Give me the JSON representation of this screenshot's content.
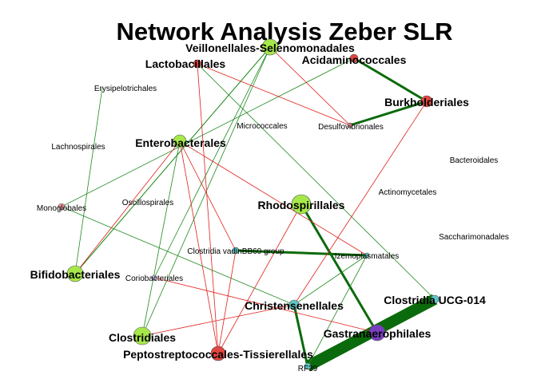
{
  "title": "Network Analysis Zeber SLR",
  "colors": {
    "positive_edge": "#1f8a1f",
    "strong_positive_edge": "#0b6a0b",
    "negative_edge": "#e0201a",
    "green_node": "#a6e84a",
    "red_node": "#e0463f",
    "teal_node": "#5ec8c8",
    "purple_node": "#7a3fc0",
    "lavender_node": "#b9b2e6",
    "pink_node": "#e89a9a"
  },
  "nodes": [
    {
      "id": "veillonellales",
      "label": "Veillonellales-Selenomonadales",
      "size": "big",
      "color": "green"
    },
    {
      "id": "lactobacillales",
      "label": "Lactobacillales",
      "size": "big",
      "color": "red"
    },
    {
      "id": "acidaminococcales",
      "label": "Acidaminococcales",
      "size": "big",
      "color": "red"
    },
    {
      "id": "burkholderiales",
      "label": "Burkholderiales",
      "size": "big",
      "color": "red"
    },
    {
      "id": "erysipelotrichales",
      "label": "Erysipelotrichales",
      "size": "small",
      "color": "none"
    },
    {
      "id": "desulfovibrionales",
      "label": "Desulfovibrionales",
      "size": "small",
      "color": "pink"
    },
    {
      "id": "micrococcales",
      "label": "Micrococcales",
      "size": "small",
      "color": "none"
    },
    {
      "id": "lachnospirales",
      "label": "Lachnospirales",
      "size": "small",
      "color": "none"
    },
    {
      "id": "enterobacterales",
      "label": "Enterobacterales",
      "size": "big",
      "color": "green"
    },
    {
      "id": "bacteroidales",
      "label": "Bacteroidales",
      "size": "small",
      "color": "none"
    },
    {
      "id": "actinomycetales",
      "label": "Actinomycetales",
      "size": "small",
      "color": "none"
    },
    {
      "id": "oscillospirales",
      "label": "Oscillospirales",
      "size": "small",
      "color": "none"
    },
    {
      "id": "monoglobales",
      "label": "Monoglobales",
      "size": "small",
      "color": "pink"
    },
    {
      "id": "rhodospirillales",
      "label": "Rhodospirillales",
      "size": "big",
      "color": "green"
    },
    {
      "id": "saccharimonadales",
      "label": "Saccharimonadales",
      "size": "small",
      "color": "none"
    },
    {
      "id": "clostridia_vadin",
      "label": "Clostridia vadinBB60 group",
      "size": "small",
      "color": "teal"
    },
    {
      "id": "izemoplasmatales",
      "label": "Izemoplasmatales",
      "size": "small",
      "color": "teal"
    },
    {
      "id": "bifidobacteriales",
      "label": "Bifidobacteriales",
      "size": "big",
      "color": "green"
    },
    {
      "id": "coriobacteriales",
      "label": "Coriobacteriales",
      "size": "small",
      "color": "lavender"
    },
    {
      "id": "christensenellales",
      "label": "Christensenellales",
      "size": "big",
      "color": "teal"
    },
    {
      "id": "clostridia_ucg014",
      "label": "Clostridia UCG-014",
      "size": "big",
      "color": "teal"
    },
    {
      "id": "gastranaerophilales",
      "label": "Gastranaerophilales",
      "size": "big",
      "color": "purple"
    },
    {
      "id": "clostridiales",
      "label": "Clostridiales",
      "size": "big",
      "color": "green"
    },
    {
      "id": "peptostreptococcales",
      "label": "Peptostreptococcales-Tissierellales",
      "size": "big",
      "color": "red"
    },
    {
      "id": "rf39",
      "label": "RF39",
      "size": "small",
      "color": "teal"
    }
  ],
  "edges": [
    {
      "a": "acidaminococcales",
      "b": "burkholderiales",
      "sign": "positive",
      "weight": 3
    },
    {
      "a": "burkholderiales",
      "b": "desulfovibrionales",
      "sign": "positive",
      "weight": 3
    },
    {
      "a": "clostridia_vadin",
      "b": "izemoplasmatales",
      "sign": "positive",
      "weight": 3
    },
    {
      "a": "rhodospirillales",
      "b": "gastranaerophilales",
      "sign": "positive",
      "weight": 3
    },
    {
      "a": "christensenellales",
      "b": "rf39",
      "sign": "positive",
      "weight": 3
    },
    {
      "a": "clostridia_ucg014",
      "b": "rf39",
      "sign": "positive",
      "weight": 14
    },
    {
      "a": "veillonellales",
      "b": "bifidobacteriales",
      "sign": "positive",
      "weight": 1.3
    },
    {
      "a": "veillonellales",
      "b": "clostridiales",
      "sign": "positive",
      "weight": 1
    },
    {
      "a": "veillonellales",
      "b": "coriobacteriales",
      "sign": "positive",
      "weight": 1
    },
    {
      "a": "erysipelotrichales",
      "b": "bifidobacteriales",
      "sign": "positive",
      "weight": 1
    },
    {
      "a": "lactobacillales",
      "b": "clostridia_ucg014",
      "sign": "positive",
      "weight": 1
    },
    {
      "a": "acidaminococcales",
      "b": "monoglobales",
      "sign": "positive",
      "weight": 1
    },
    {
      "a": "enterobacterales",
      "b": "clostridiales",
      "sign": "positive",
      "weight": 1
    },
    {
      "a": "monoglobales",
      "b": "christensenellales",
      "sign": "positive",
      "weight": 1
    },
    {
      "a": "izemoplasmatales",
      "b": "christensenellales",
      "sign": "positive",
      "weight": 1
    },
    {
      "a": "izemoplasmatales",
      "b": "rf39",
      "sign": "positive",
      "weight": 1
    },
    {
      "a": "lactobacillales",
      "b": "peptostreptococcales",
      "sign": "negative",
      "weight": 1
    },
    {
      "a": "lactobacillales",
      "b": "desulfovibrionales",
      "sign": "negative",
      "weight": 1
    },
    {
      "a": "veillonellales",
      "b": "desulfovibrionales",
      "sign": "negative",
      "weight": 1
    },
    {
      "a": "enterobacterales",
      "b": "bifidobacteriales",
      "sign": "negative",
      "weight": 1
    },
    {
      "a": "enterobacterales",
      "b": "izemoplasmatales",
      "sign": "negative",
      "weight": 1
    },
    {
      "a": "enterobacterales",
      "b": "peptostreptococcales",
      "sign": "negative",
      "weight": 1
    },
    {
      "a": "enterobacterales",
      "b": "clostridia_vadin",
      "sign": "negative",
      "weight": 1
    },
    {
      "a": "coriobacteriales",
      "b": "gastranaerophilales",
      "sign": "negative",
      "weight": 1
    },
    {
      "a": "christensenellales",
      "b": "burkholderiales",
      "sign": "negative",
      "weight": 1
    },
    {
      "a": "clostridia_vadin",
      "b": "peptostreptococcales",
      "sign": "negative",
      "weight": 1
    },
    {
      "a": "rhodospirillales",
      "b": "peptostreptococcales",
      "sign": "negative",
      "weight": 1
    },
    {
      "a": "christensenellales",
      "b": "clostridiales",
      "sign": "negative",
      "weight": 1
    }
  ]
}
